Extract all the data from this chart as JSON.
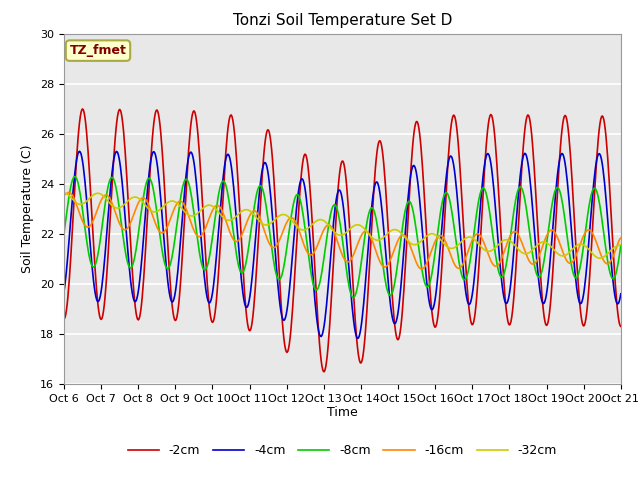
{
  "title": "Tonzi Soil Temperature Set D",
  "xlabel": "Time",
  "ylabel": "Soil Temperature (C)",
  "ylim": [
    16,
    30
  ],
  "yticks": [
    16,
    18,
    20,
    22,
    24,
    26,
    28,
    30
  ],
  "xtick_labels": [
    "Oct 6",
    "Oct 7",
    "Oct 8",
    "Oct 9",
    "Oct 10",
    "Oct 11",
    "Oct 12",
    "Oct 13",
    "Oct 14",
    "Oct 15",
    "Oct 16",
    "Oct 17",
    "Oct 18",
    "Oct 19",
    "Oct 20",
    "Oct 21"
  ],
  "legend_labels": [
    "-2cm",
    "-4cm",
    "-8cm",
    "-16cm",
    "-32cm"
  ],
  "line_colors": [
    "#cc0000",
    "#0000cc",
    "#00cc00",
    "#ff8800",
    "#cccc00"
  ],
  "annotation_text": "TZ_fmet",
  "annotation_color": "#800000",
  "annotation_bg": "#ffffcc",
  "annotation_border": "#aaaa44",
  "fig_bg": "#ffffff",
  "plot_bg": "#e8e8e8",
  "grid_color": "#ffffff",
  "line_width": 1.2,
  "title_fontsize": 11,
  "axis_fontsize": 9,
  "tick_fontsize": 8
}
